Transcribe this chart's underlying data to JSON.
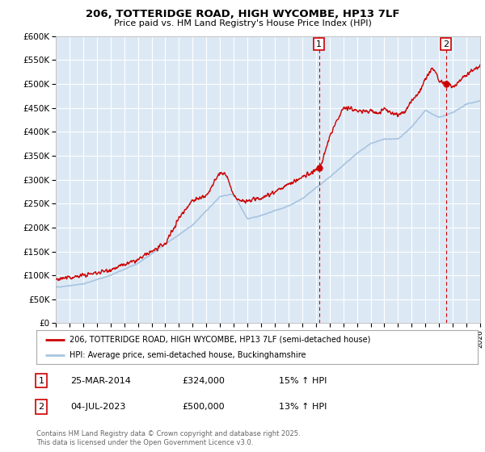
{
  "title1": "206, TOTTERIDGE ROAD, HIGH WYCOMBE, HP13 7LF",
  "title2": "Price paid vs. HM Land Registry's House Price Index (HPI)",
  "ylabel_ticks": [
    "£0",
    "£50K",
    "£100K",
    "£150K",
    "£200K",
    "£250K",
    "£300K",
    "£350K",
    "£400K",
    "£450K",
    "£500K",
    "£550K",
    "£600K"
  ],
  "ytick_values": [
    0,
    50000,
    100000,
    150000,
    200000,
    250000,
    300000,
    350000,
    400000,
    450000,
    500000,
    550000,
    600000
  ],
  "x_start_year": 1995,
  "x_end_year": 2026,
  "hpi_color": "#a8c4e0",
  "price_color": "#cc0000",
  "marker1_x": 2014.23,
  "marker1_label": "1",
  "marker2_x": 2023.5,
  "marker2_label": "2",
  "legend_line1": "206, TOTTERIDGE ROAD, HIGH WYCOMBE, HP13 7LF (semi-detached house)",
  "legend_line2": "HPI: Average price, semi-detached house, Buckinghamshire",
  "table_row1_num": "1",
  "table_row1_date": "25-MAR-2014",
  "table_row1_price": "£324,000",
  "table_row1_hpi": "15% ↑ HPI",
  "table_row2_num": "2",
  "table_row2_date": "04-JUL-2023",
  "table_row2_price": "£500,000",
  "table_row2_hpi": "13% ↑ HPI",
  "footer": "Contains HM Land Registry data © Crown copyright and database right 2025.\nThis data is licensed under the Open Government Licence v3.0.",
  "bg_color": "#ffffff",
  "plot_bg_color": "#dce9f5",
  "grid_color": "#ffffff"
}
